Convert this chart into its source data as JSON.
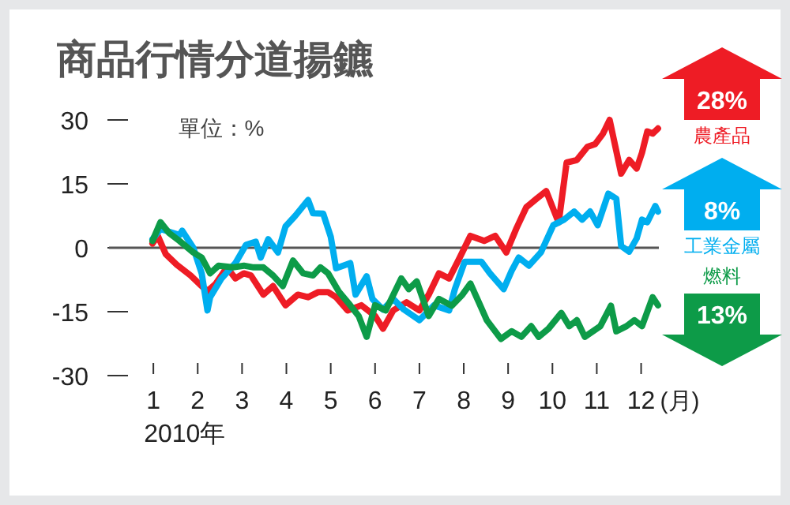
{
  "chart_data": {
    "type": "line",
    "title": "商品行情分道揚鑣",
    "xlabel": "(月)",
    "xlim": [
      0,
      12.4
    ],
    "xticks": [
      1,
      2,
      3,
      4,
      5,
      6,
      7,
      8,
      9,
      10,
      11,
      12
    ],
    "ylim": [
      -30,
      30
    ],
    "yticks": [
      -30,
      -15,
      0,
      15,
      30
    ],
    "grid": false,
    "line_style": "solid",
    "marker": "none",
    "ref_lines": [
      {
        "axis": "y",
        "value": 0,
        "color": "#555555"
      }
    ],
    "annotations": [
      "28%",
      "8%",
      "13%",
      "單位：%",
      "2010年"
    ],
    "series": [
      {
        "name": "農產品",
        "color": "#ee1c25",
        "x": [
          0.98,
          1.1,
          1.28,
          1.53,
          1.84,
          2.09,
          2.22,
          2.41,
          2.66,
          2.85,
          3.04,
          3.2,
          3.48,
          3.7,
          3.98,
          4.26,
          4.49,
          4.72,
          4.94,
          5.12,
          5.38,
          5.69,
          6,
          6.18,
          6.41,
          6.71,
          7,
          7.21,
          7.44,
          7.67,
          7.91,
          8.15,
          8.46,
          8.71,
          8.96,
          9.19,
          9.41,
          9.63,
          9.86,
          10.14,
          10.32,
          10.55,
          10.79,
          10.96,
          11.14,
          11.29,
          11.55,
          11.73,
          11.9,
          12.02,
          12.14,
          12.26,
          12.38
        ],
        "values": [
          1,
          2.8,
          -1.5,
          -4,
          -6.5,
          -9,
          -10.2,
          -8.4,
          -4.6,
          -7.2,
          -6,
          -6.5,
          -11,
          -9,
          -13.5,
          -11,
          -11.6,
          -10.4,
          -10.4,
          -11.6,
          -14.7,
          -13.5,
          -16,
          -19,
          -14.7,
          -12.8,
          -14.7,
          -11,
          -6,
          -7.2,
          -2.3,
          2.8,
          1.6,
          2.8,
          -1.1,
          4.6,
          9.5,
          11.4,
          13.3,
          5.9,
          20,
          20.6,
          23.7,
          24.3,
          26.8,
          30,
          17.4,
          20.6,
          18.6,
          22.3,
          27.3,
          26.8,
          28
        ]
      },
      {
        "name": "工業金屬",
        "color": "#00aeef",
        "x": [
          0.98,
          1.16,
          1.59,
          1.65,
          1.9,
          2.09,
          2.22,
          2.28,
          2.53,
          2.85,
          3.09,
          3.31,
          3.42,
          3.59,
          3.81,
          3.98,
          4.2,
          4.49,
          4.6,
          4.83,
          5,
          5.12,
          5.44,
          5.56,
          5.81,
          5.94,
          6.18,
          6.41,
          6.65,
          7,
          7.33,
          7.67,
          7.8,
          8.02,
          8.4,
          8.59,
          8.9,
          9.08,
          9.24,
          9.47,
          9.74,
          10.02,
          10.26,
          10.49,
          10.67,
          10.85,
          11.02,
          11.26,
          11.44,
          11.55,
          11.73,
          11.9,
          12.02,
          12.14,
          12.32,
          12.38
        ],
        "values": [
          2,
          4.4,
          3,
          4,
          0,
          -6,
          -14.7,
          -11.6,
          -7.3,
          -3.6,
          0.7,
          1.4,
          -2.3,
          2,
          -1.1,
          5,
          7.5,
          11.2,
          8.1,
          8,
          2.6,
          -4.8,
          -3.6,
          -11,
          -6.7,
          -12,
          -14.5,
          -12,
          -14.5,
          -17,
          -13.5,
          -14.7,
          -9.7,
          -3.3,
          -3.3,
          -6,
          -9.7,
          -5.4,
          -2.3,
          -4.2,
          -1.1,
          5.3,
          6.6,
          8.5,
          6.6,
          8.5,
          5.3,
          12.7,
          11.5,
          0.4,
          -0.9,
          2.2,
          6.6,
          6,
          9.8,
          8.5
        ]
      },
      {
        "name": "燃料",
        "color": "#0d9b48",
        "x": [
          0.98,
          1.16,
          1.35,
          1.59,
          1.9,
          2.09,
          2.28,
          2.47,
          2.79,
          3.04,
          3.26,
          3.48,
          3.7,
          3.92,
          4.15,
          4.38,
          4.6,
          4.77,
          4.94,
          5.19,
          5.44,
          5.63,
          5.81,
          6,
          6.24,
          6.59,
          6.76,
          6.94,
          7.21,
          7.44,
          7.73,
          7.97,
          8.15,
          8.34,
          8.52,
          8.84,
          9.08,
          9.3,
          9.52,
          9.69,
          9.91,
          10.2,
          10.38,
          10.55,
          10.73,
          11.08,
          11.32,
          11.44,
          11.67,
          11.85,
          12.02,
          12.26,
          12.38
        ],
        "values": [
          1.6,
          6,
          3.5,
          1.6,
          -1.1,
          -2.3,
          -6,
          -4.2,
          -4.6,
          -4.2,
          -4.6,
          -4.6,
          -6.5,
          -9,
          -3,
          -6,
          -6.5,
          -4.6,
          -6,
          -10.4,
          -13.5,
          -16,
          -20.9,
          -13.5,
          -14.7,
          -7.2,
          -9.7,
          -7.9,
          -16,
          -12,
          -13.6,
          -11,
          -8.4,
          -12.8,
          -17,
          -21.4,
          -19.6,
          -20.9,
          -18.4,
          -20.9,
          -19,
          -15.3,
          -18.4,
          -17,
          -20.9,
          -18.4,
          -13.6,
          -19.6,
          -18.4,
          -17,
          -18.4,
          -11.6,
          -13.5
        ]
      }
    ]
  }
}
